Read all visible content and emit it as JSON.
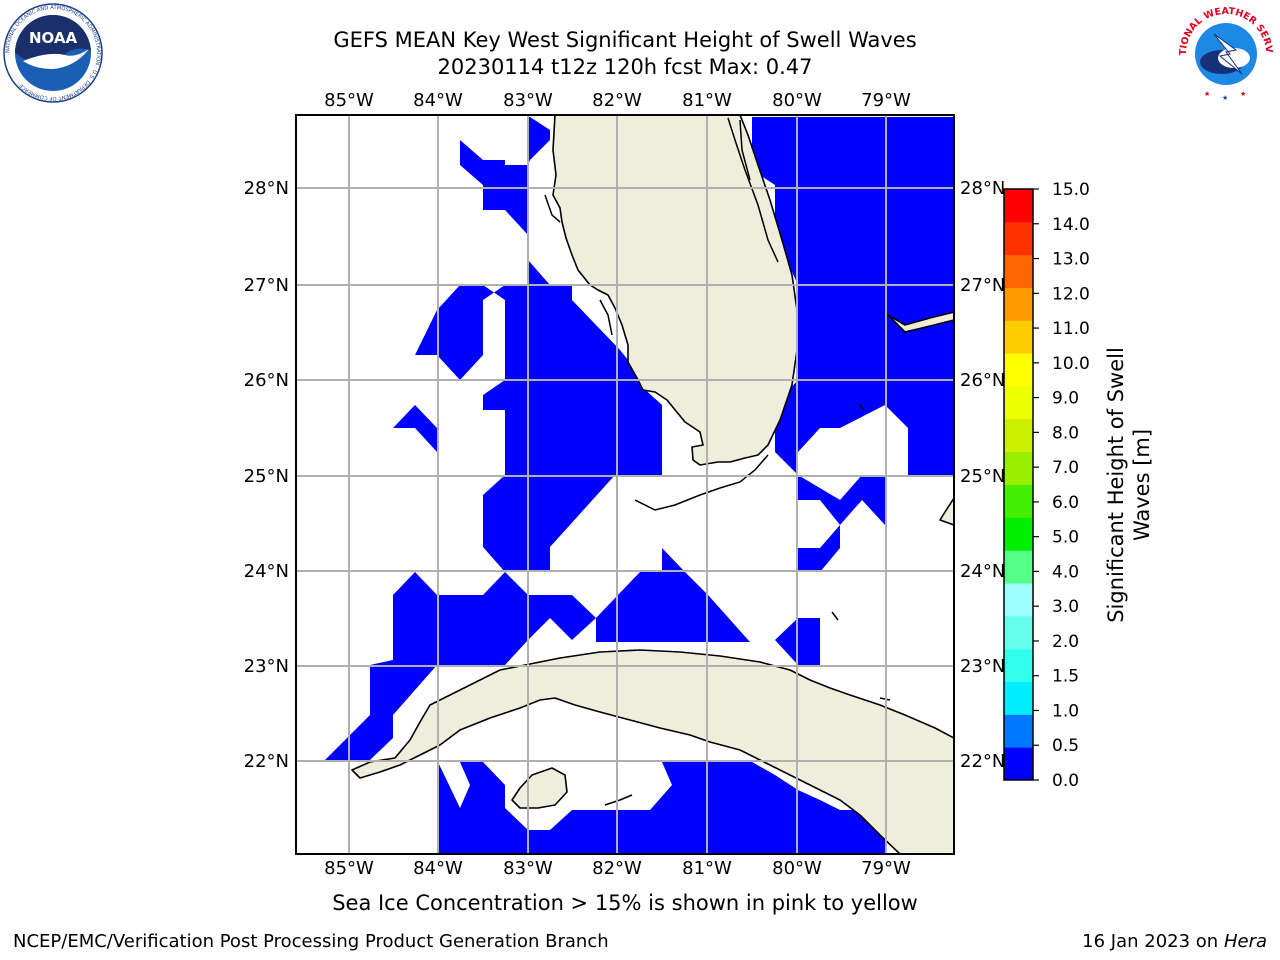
{
  "header": {
    "title_line1": "GEFS MEAN Key West Significant Height of Swell Waves",
    "title_line2": "20230114 t12z 120h fcst   Max: 0.47"
  },
  "map": {
    "lon_labels": [
      "85°W",
      "84°W",
      "83°W",
      "82°W",
      "81°W",
      "80°W",
      "79°W"
    ],
    "lat_labels": [
      "28°N",
      "27°N",
      "26°N",
      "25°N",
      "24°N",
      "23°N",
      "22°N"
    ],
    "land_color": "#efeedd",
    "swell_color": "#0000ff"
  },
  "colorbar": {
    "label_line1": "Significant Height of Swell",
    "label_line2": "Waves [m]",
    "ticks": [
      "0.0",
      "0.5",
      "1.0",
      "1.5",
      "2.0",
      "3.0",
      "4.0",
      "5.0",
      "6.0",
      "7.0",
      "8.0",
      "9.0",
      "10.0",
      "11.0",
      "12.0",
      "13.0",
      "14.0",
      "15.0"
    ],
    "colors": [
      "#0000ff",
      "#0077ff",
      "#00eeff",
      "#33ffee",
      "#66ffee",
      "#99ffff",
      "#55ff88",
      "#00ee00",
      "#44ee00",
      "#99ee00",
      "#ccee00",
      "#eeff00",
      "#ffff00",
      "#ffcc00",
      "#ff9900",
      "#ff6600",
      "#ff3300",
      "#ff0000"
    ]
  },
  "caption": "Sea Ice Concentration > 15% is shown in pink to yellow",
  "footer": {
    "left": "NCEP/EMC/Verification Post Processing Product Generation Branch",
    "right_date": "16 Jan 2023 on ",
    "right_host": "Hera"
  },
  "logos": {
    "noaa_text": "NOAA",
    "noaa_ring": "NATIONAL OCEANIC AND ATMOSPHERIC ADMINISTRATION · U.S. DEPARTMENT OF COMMERCE ·",
    "nws_ring": "NATIONAL WEATHER SERVICE"
  }
}
